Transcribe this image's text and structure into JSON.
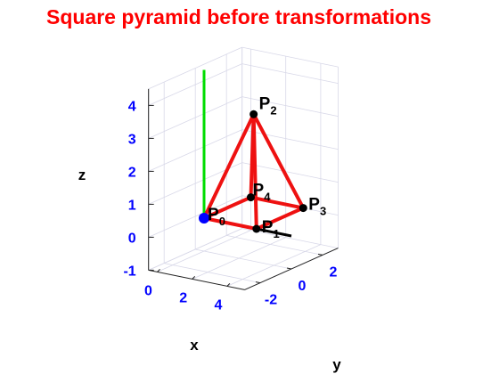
{
  "chart_data": {
    "type": "3d-line",
    "title": "Square pyramid  before transformations",
    "axes": {
      "x": {
        "label": "x",
        "ticks": [
          "0",
          "2",
          "4"
        ],
        "range": [
          -0.5,
          5
        ]
      },
      "y": {
        "label": "y",
        "ticks": [
          "-2",
          "0",
          "2"
        ],
        "range": [
          -3,
          3
        ]
      },
      "z": {
        "label": "z",
        "ticks": [
          "-1",
          "0",
          "1",
          "2",
          "3",
          "4"
        ],
        "range": [
          -1,
          4.5
        ]
      }
    },
    "grid": true,
    "points": [
      {
        "name": "P",
        "sub": "0",
        "x": 0,
        "y": 0,
        "z": 0
      },
      {
        "name": "P",
        "sub": "1",
        "x": 3,
        "y": 0,
        "z": 0
      },
      {
        "name": "P",
        "sub": "2",
        "x": 1.5,
        "y": 1.5,
        "z": 3
      },
      {
        "name": "P",
        "sub": "3",
        "x": 3,
        "y": 3,
        "z": 0
      },
      {
        "name": "P",
        "sub": "4",
        "x": 0,
        "y": 3,
        "z": 0
      }
    ],
    "edges": [
      [
        0,
        1
      ],
      [
        1,
        3
      ],
      [
        3,
        4
      ],
      [
        4,
        0
      ],
      [
        0,
        2
      ],
      [
        1,
        2
      ],
      [
        3,
        2
      ],
      [
        4,
        2
      ]
    ],
    "reference_lines": [
      {
        "name": "z-axis-line",
        "color": "#00dd00",
        "from": [
          0,
          0,
          0
        ],
        "to": [
          0,
          0,
          4.5
        ]
      },
      {
        "name": "x-axis-line",
        "color": "#000000",
        "from": [
          0,
          0,
          0
        ],
        "to": [
          5,
          0,
          0
        ]
      },
      {
        "name": "y-axis-line",
        "color": "#cc00cc",
        "from": [
          0,
          0,
          0
        ],
        "to": [
          0,
          1.5,
          0
        ]
      }
    ],
    "colors": {
      "edges": "#ee1111",
      "title": "#ff0000",
      "ticks": "#0000ff",
      "origin": "#0000ff",
      "grid": "#d8d8e8"
    }
  }
}
